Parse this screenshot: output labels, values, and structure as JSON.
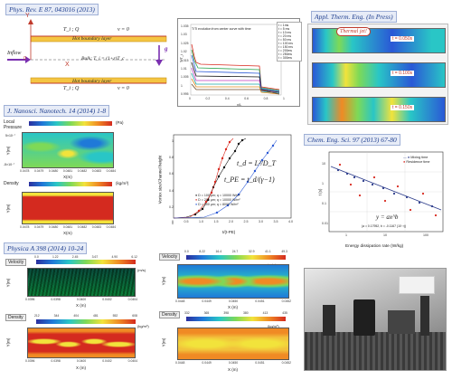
{
  "citations": {
    "pre": "Phys. Rev. E 87, 043016 (2013)",
    "ate": "Appl. Therm. Eng. (In Press)",
    "jnn": "J. Nanosci. Nanotech. 14 (2014) 1-8",
    "ces": "Chem. Eng. Sci. 97 (2013) 67-80",
    "pha": "Physica A 398 (2014) 10-24"
  },
  "schematic": {
    "y_axis": "Y",
    "x_axis": "X",
    "zero": "0",
    "top_bc": "T_i ; Q",
    "top_v": "v = 0",
    "bot_bc": "T_i ; Q",
    "bot_v": "v = 0",
    "top_layer": "Hot boundary layer",
    "bot_layer": "Hot boundary layer",
    "bulk": "Bulk; T_i = (1+ε)T_c",
    "inflow": "Inflow",
    "gravity": "g"
  },
  "t_evolution": {
    "title": "T/Ti evolution from center curve with time",
    "ylabel": "T/T_i",
    "xlabel": "x/L",
    "legend": [
      "t = 1ms",
      "t = 5 ms",
      "t = 10 ms",
      "t = 20 ms",
      "t = 50 ms",
      "t = 100 ms",
      "t = 150 ms",
      "t = 200ms",
      "t = 250ms",
      "t = 300ms"
    ],
    "yticks": [
      "1.035",
      "1.03",
      "1.025",
      "1.02",
      "1.015",
      "1.01",
      "1.005",
      "1",
      "0.995"
    ],
    "xticks": [
      "0",
      "0.2",
      "0.4",
      "0.6",
      "0.8",
      "1"
    ]
  },
  "thermal_jet": {
    "callout": "Thermal jet!",
    "t1": "t = 0.050s",
    "t2": "t = 0.100s",
    "t3": "t = 0.150s"
  },
  "pressure_map": {
    "title_line1": "Local",
    "title_line2": "Pressure",
    "unit": "(Pa)",
    "xlabel": "X(m)",
    "ylabel": "Y(m)",
    "xticks": [
      "0.0478",
      "0.0479",
      "0.0480",
      "0.0481",
      "0.0482",
      "0.0483",
      "0.0484"
    ],
    "ytick_top": "5×10⁻⁷",
    "ytick_bot": "-5×10⁻⁷"
  },
  "density_map": {
    "title": "Density",
    "unit": "(kg/m³)",
    "xlabel": "X(m)",
    "ylabel": "Y(m)",
    "xticks": [
      "0.0478",
      "0.0479",
      "0.0480",
      "0.0481",
      "0.0482",
      "0.0483",
      "0.0484"
    ]
  },
  "vortex_plot": {
    "ylabel": "Vortex size/Channel height",
    "xlabel": "t/(t-PE)",
    "eq1": "t_d = L²/D_T",
    "eq2": "t_PE = t_d/(γ−1)",
    "legend": [
      "D = 100 µm; q = 10000 W/m²",
      "D = 200 µm; q = 10000 W/m²",
      "D = 200 µm; q = 8000 W/m²"
    ],
    "yticks": [
      "1",
      "0.8",
      "0.6",
      "0.4",
      "0.2",
      "0"
    ],
    "xticks": [
      "0",
      "0.5",
      "1.0",
      "1.5",
      "2.0",
      "2.5",
      "3.0",
      "3.5",
      "4.0"
    ]
  },
  "chem_plot": {
    "legend": [
      "Mixing time",
      "Residence time"
    ],
    "ylabel": "t (s)",
    "xlabel": "Energy dissipation rate (W/kg)",
    "fit": "y = ax^b",
    "fit_params": "(a = 0.17952, b = -0.1167 (10⁻²))",
    "xticks": [
      "1",
      "10",
      "100"
    ],
    "yticks": [
      "10",
      "1",
      "0.1",
      "0.01"
    ]
  },
  "velocity_left": {
    "title": "Velocity",
    "ticks": [
      "0.0",
      "1.22",
      "2.45",
      "3.67",
      "4.90",
      "6.12"
    ],
    "unit": "(m/s)",
    "ylabel": "Y(m)",
    "xlabel": "X (m)",
    "xticks": [
      "0.0396",
      "0.0398",
      "0.0400",
      "0.0402",
      "0.0404"
    ]
  },
  "density_left": {
    "title": "Density",
    "ticks": [
      "212",
      "344",
      "404",
      "481",
      "552",
      "608"
    ],
    "unit": "(kg/m³)",
    "ylabel": "Y(m)",
    "xlabel": "X (m)",
    "xticks": [
      "0.0396",
      "0.0398",
      "0.0400",
      "0.0402",
      "0.0404"
    ]
  },
  "velocity_mid": {
    "title": "Velocity",
    "ticks": [
      "0.0",
      "8.22",
      "16.4",
      "24.7",
      "32.9",
      "41.1",
      "49.3"
    ],
    "unit": "(m/s)",
    "ylabel": "Y(m)",
    "xlabel": "X (m)",
    "xticks": [
      "0.0448",
      "0.0449",
      "0.0450",
      "0.0451",
      "0.0452"
    ]
  },
  "density_mid": {
    "title": "Density",
    "ticks": [
      "332",
      "365",
      "398",
      "380",
      "413",
      "435"
    ],
    "unit": "(kg/m³)",
    "ylabel": "Y(m)",
    "xlabel": "X (m)",
    "xticks": [
      "0.0448",
      "0.0449",
      "0.0450",
      "0.0451",
      "0.0452"
    ]
  },
  "colors": {
    "citation_text": "#1f3f8f",
    "hot_layer": "#f4c542",
    "arrow": "#7a2fb0"
  }
}
